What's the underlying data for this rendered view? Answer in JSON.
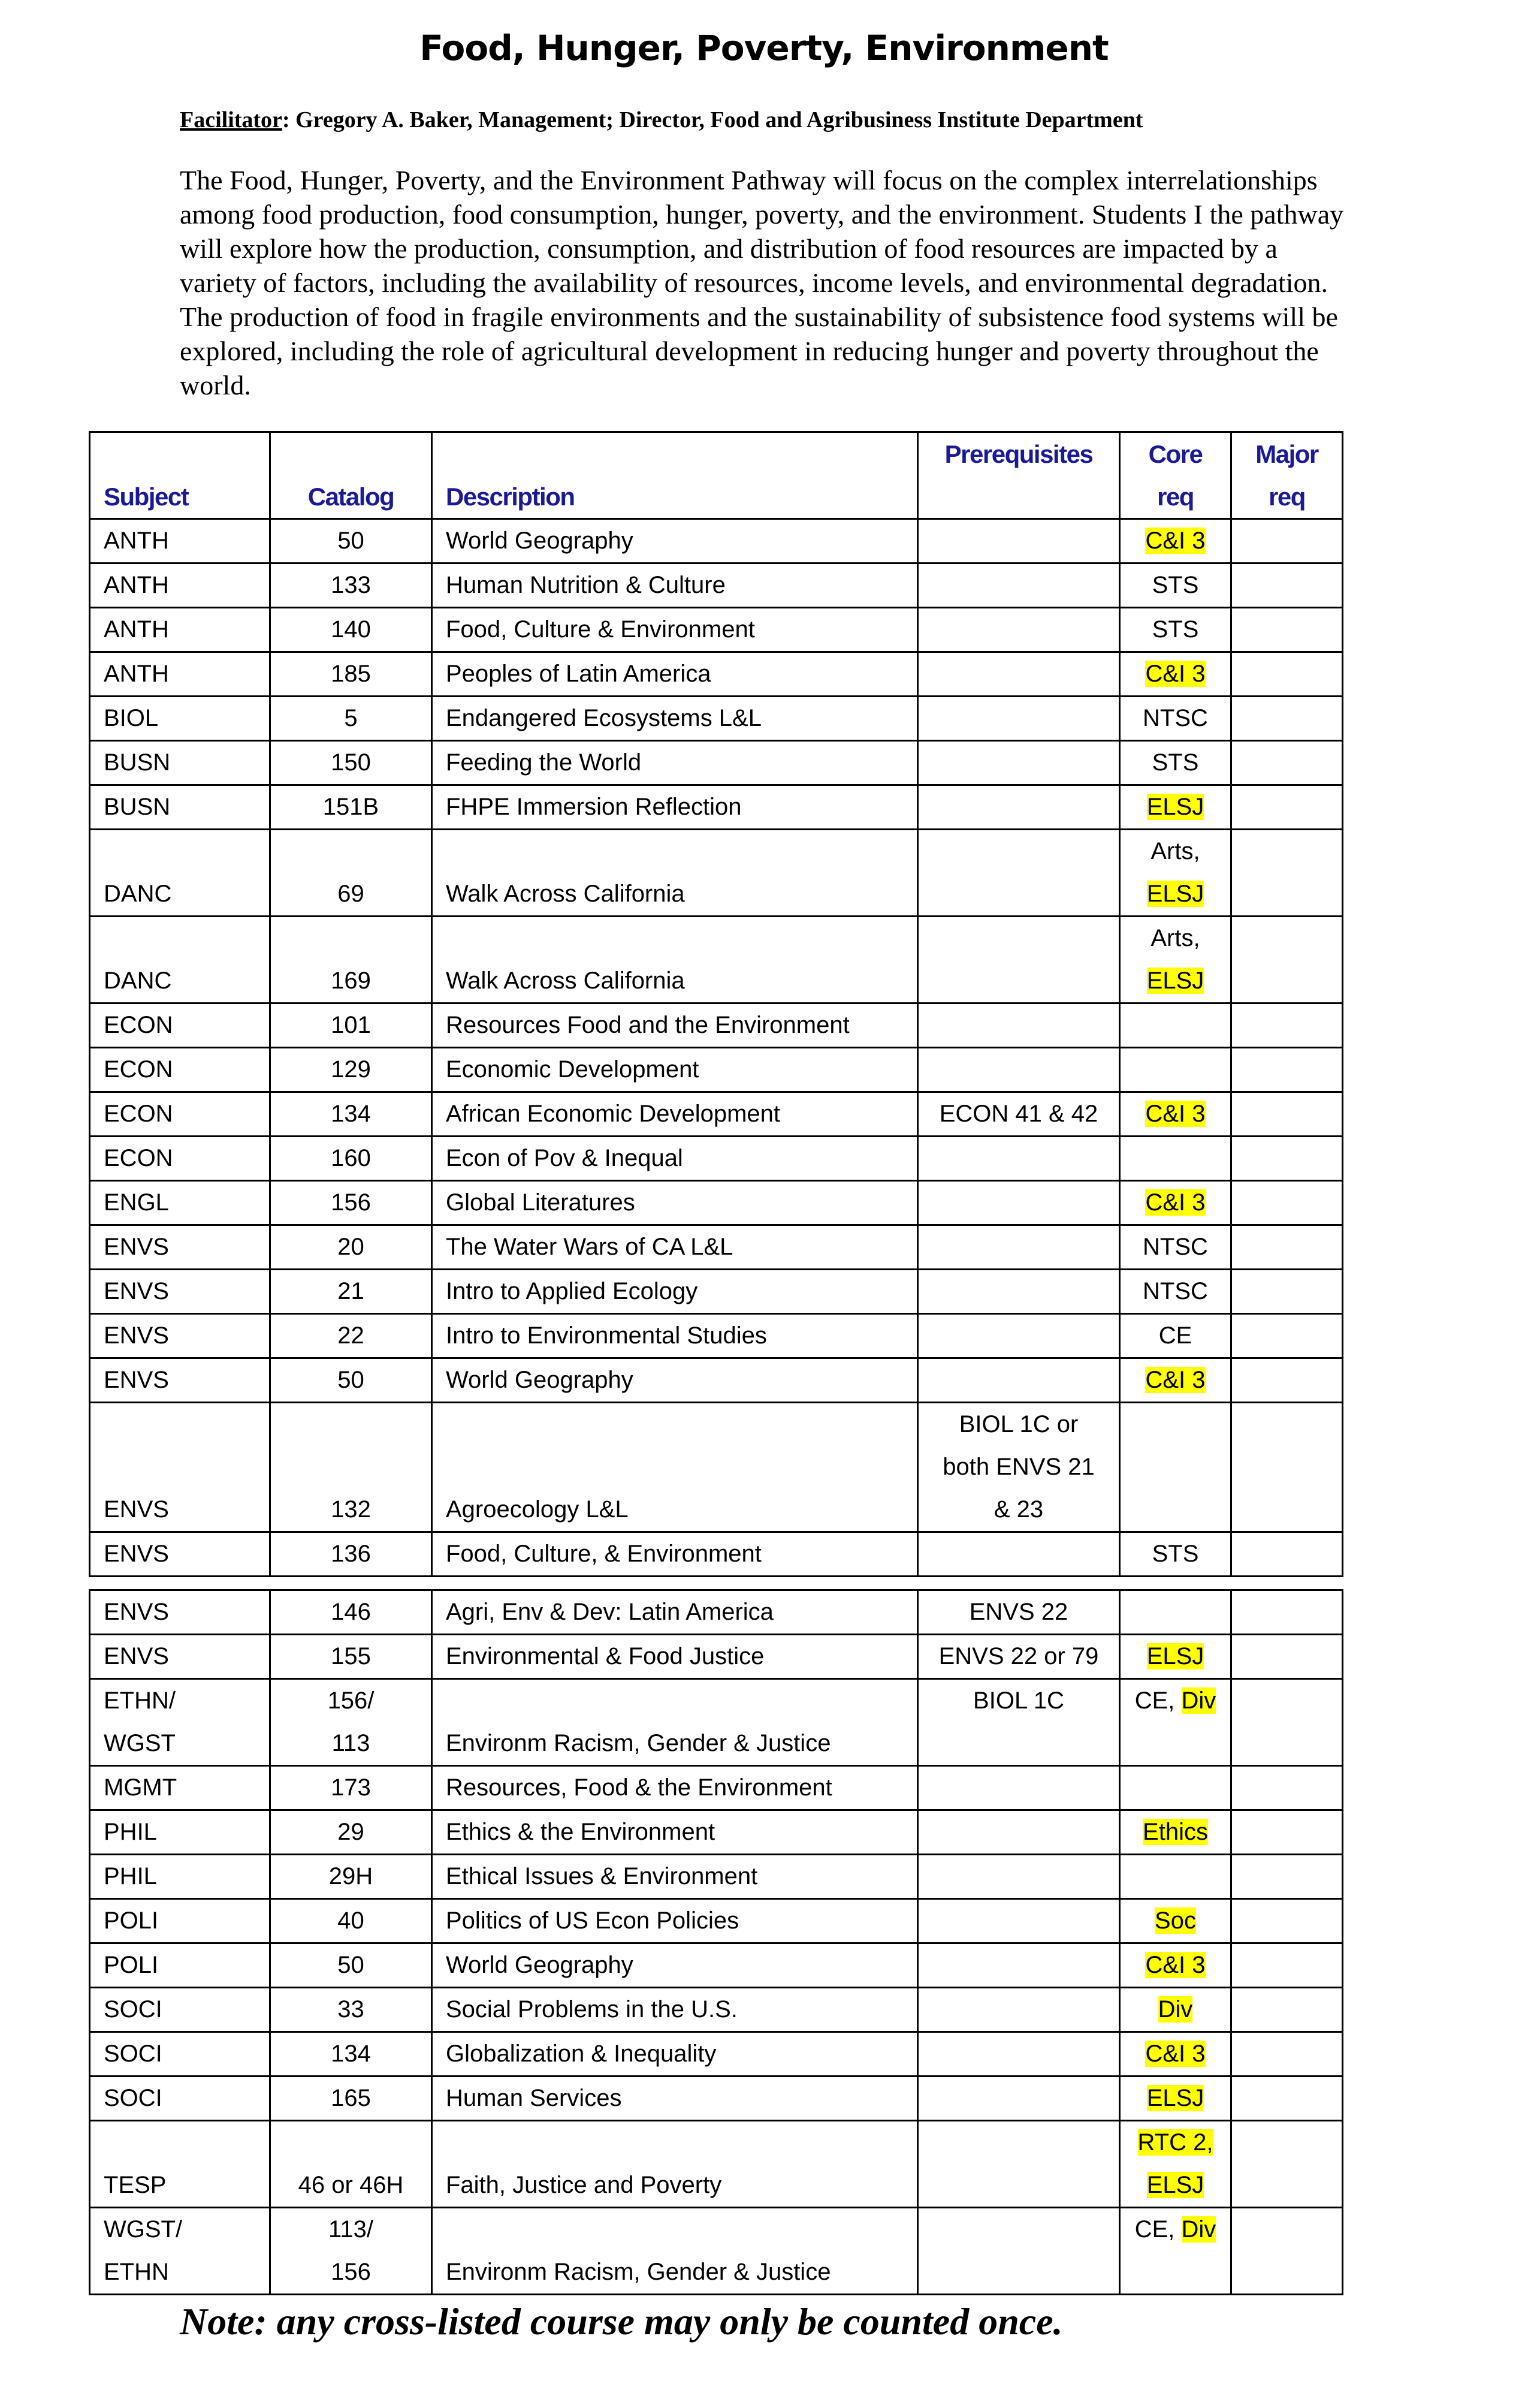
{
  "title": "Food, Hunger, Poverty, Environment",
  "facilitator": {
    "label": "Facilitator",
    "text": ": Gregory A. Baker, Management; Director, Food and Agribusiness Institute Department"
  },
  "intro": "The Food, Hunger, Poverty, and the Environment Pathway will focus on the complex interrelationships among food production, food consumption, hunger, poverty, and the environment. Students I the pathway will explore how the production, consumption, and distribution of food resources are impacted by a variety of factors, including the availability of resources, income levels, and environmental degradation. The production of food in fragile environments and the sustainability of subsistence food systems will be explored, including the role of agricultural development in reducing hunger and poverty throughout the world.",
  "colors": {
    "header_text": "#1a1a96",
    "highlight": "#ffff00"
  },
  "headers": {
    "subject": [
      "",
      "Subject"
    ],
    "catalog": [
      "",
      "Catalog"
    ],
    "description": [
      "",
      "Description"
    ],
    "prereq": [
      "Prerequisites",
      ""
    ],
    "core": [
      "Core",
      "req"
    ],
    "major": [
      "Major",
      "req"
    ]
  },
  "tables": [
    [
      {
        "subject": [
          "ANTH"
        ],
        "catalog": [
          "50"
        ],
        "description": [
          "World Geography"
        ],
        "prereq": [
          ""
        ],
        "core": [
          [
            {
              "t": "C&I 3",
              "h": 1
            }
          ]
        ]
      },
      {
        "subject": [
          "ANTH"
        ],
        "catalog": [
          "133"
        ],
        "description": [
          "Human Nutrition & Culture"
        ],
        "prereq": [
          ""
        ],
        "core": [
          [
            {
              "t": "STS",
              "h": 0
            }
          ]
        ]
      },
      {
        "subject": [
          "ANTH"
        ],
        "catalog": [
          "140"
        ],
        "description": [
          "Food, Culture & Environment"
        ],
        "prereq": [
          ""
        ],
        "core": [
          [
            {
              "t": "STS",
              "h": 0
            }
          ]
        ]
      },
      {
        "subject": [
          "ANTH"
        ],
        "catalog": [
          "185"
        ],
        "description": [
          "Peoples of Latin America"
        ],
        "prereq": [
          ""
        ],
        "core": [
          [
            {
              "t": "C&I 3",
              "h": 1
            }
          ]
        ]
      },
      {
        "subject": [
          "BIOL"
        ],
        "catalog": [
          "5"
        ],
        "description": [
          "Endangered Ecosystems L&L"
        ],
        "prereq": [
          ""
        ],
        "core": [
          [
            {
              "t": "NTSC",
              "h": 0
            }
          ]
        ]
      },
      {
        "subject": [
          "BUSN"
        ],
        "catalog": [
          "150"
        ],
        "description": [
          "Feeding the World"
        ],
        "prereq": [
          ""
        ],
        "core": [
          [
            {
              "t": "STS",
              "h": 0
            }
          ]
        ]
      },
      {
        "subject": [
          "BUSN"
        ],
        "catalog": [
          "151B"
        ],
        "description": [
          "FHPE Immersion Reflection"
        ],
        "prereq": [
          ""
        ],
        "core": [
          [
            {
              "t": "ELSJ",
              "h": 1
            }
          ]
        ]
      },
      {
        "subject": [
          "DANC"
        ],
        "catalog": [
          "69"
        ],
        "description": [
          "Walk Across California"
        ],
        "prereq": [
          ""
        ],
        "core": [
          [
            {
              "t": "Arts,",
              "h": 0
            }
          ],
          [
            {
              "t": "ELSJ",
              "h": 1
            }
          ]
        ]
      },
      {
        "subject": [
          "DANC"
        ],
        "catalog": [
          "169"
        ],
        "description": [
          "Walk Across California"
        ],
        "prereq": [
          ""
        ],
        "core": [
          [
            {
              "t": "Arts,",
              "h": 0
            }
          ],
          [
            {
              "t": "ELSJ",
              "h": 1
            }
          ]
        ]
      },
      {
        "subject": [
          "ECON"
        ],
        "catalog": [
          "101"
        ],
        "description": [
          "Resources Food and the Environment"
        ],
        "prereq": [
          ""
        ],
        "core": [
          []
        ]
      },
      {
        "subject": [
          "ECON"
        ],
        "catalog": [
          "129"
        ],
        "description": [
          "Economic Development"
        ],
        "prereq": [
          ""
        ],
        "core": [
          []
        ]
      },
      {
        "subject": [
          "ECON"
        ],
        "catalog": [
          "134"
        ],
        "description": [
          "African Economic Development"
        ],
        "prereq": [
          "ECON 41 & 42"
        ],
        "core": [
          [
            {
              "t": "C&I 3",
              "h": 1
            }
          ]
        ]
      },
      {
        "subject": [
          "ECON"
        ],
        "catalog": [
          "160"
        ],
        "description": [
          "Econ of Pov & Inequal"
        ],
        "prereq": [
          ""
        ],
        "core": [
          []
        ]
      },
      {
        "subject": [
          "ENGL"
        ],
        "catalog": [
          "156"
        ],
        "description": [
          "Global Literatures"
        ],
        "prereq": [
          ""
        ],
        "core": [
          [
            {
              "t": "C&I 3",
              "h": 1
            }
          ]
        ]
      },
      {
        "subject": [
          "ENVS"
        ],
        "catalog": [
          "20"
        ],
        "description": [
          "The Water Wars of CA L&L"
        ],
        "prereq": [
          ""
        ],
        "core": [
          [
            {
              "t": "NTSC",
              "h": 0
            }
          ]
        ]
      },
      {
        "subject": [
          "ENVS"
        ],
        "catalog": [
          "21"
        ],
        "description": [
          "Intro to Applied Ecology"
        ],
        "prereq": [
          ""
        ],
        "core": [
          [
            {
              "t": "NTSC",
              "h": 0
            }
          ]
        ]
      },
      {
        "subject": [
          "ENVS"
        ],
        "catalog": [
          "22"
        ],
        "description": [
          "Intro to Environmental Studies"
        ],
        "prereq": [
          ""
        ],
        "core": [
          [
            {
              "t": "CE",
              "h": 0
            }
          ]
        ]
      },
      {
        "subject": [
          "ENVS"
        ],
        "catalog": [
          "50"
        ],
        "description": [
          "World Geography"
        ],
        "prereq": [
          ""
        ],
        "core": [
          [
            {
              "t": "C&I 3",
              "h": 1
            }
          ]
        ]
      },
      {
        "subject": [
          "ENVS"
        ],
        "catalog": [
          "132"
        ],
        "description": [
          "Agroecology L&L"
        ],
        "prereq": [
          "BIOL 1C or",
          "both ENVS 21",
          "& 23"
        ],
        "core": [
          []
        ]
      },
      {
        "subject": [
          "ENVS"
        ],
        "catalog": [
          "136"
        ],
        "description": [
          "Food, Culture, & Environment"
        ],
        "prereq": [
          ""
        ],
        "core": [
          [
            {
              "t": "STS",
              "h": 0
            }
          ]
        ]
      }
    ],
    [
      {
        "subject": [
          "ENVS"
        ],
        "catalog": [
          "146"
        ],
        "description": [
          "Agri, Env & Dev: Latin America"
        ],
        "prereq": [
          "ENVS 22"
        ],
        "core": [
          []
        ]
      },
      {
        "subject": [
          "ENVS"
        ],
        "catalog": [
          "155"
        ],
        "description": [
          "Environmental & Food Justice"
        ],
        "prereq": [
          "ENVS 22 or 79"
        ],
        "core": [
          [
            {
              "t": "ELSJ",
              "h": 1
            }
          ]
        ]
      },
      {
        "subject": [
          "ETHN/",
          "WGST"
        ],
        "catalog": [
          "156/",
          "113"
        ],
        "description": [
          "",
          "Environm Racism, Gender & Justice"
        ],
        "prereq": [
          "BIOL 1C",
          ""
        ],
        "core": [
          [
            {
              "t": "CE, ",
              "h": 0
            },
            {
              "t": "Div",
              "h": 1
            }
          ],
          []
        ]
      },
      {
        "subject": [
          "MGMT"
        ],
        "catalog": [
          "173"
        ],
        "description": [
          "Resources, Food & the Environment"
        ],
        "prereq": [
          ""
        ],
        "core": [
          []
        ]
      },
      {
        "subject": [
          "PHIL"
        ],
        "catalog": [
          "29"
        ],
        "description": [
          "Ethics & the Environment"
        ],
        "prereq": [
          ""
        ],
        "core": [
          [
            {
              "t": "Ethics",
              "h": 1
            }
          ]
        ]
      },
      {
        "subject": [
          "PHIL"
        ],
        "catalog": [
          "29H"
        ],
        "description": [
          "Ethical Issues & Environment"
        ],
        "prereq": [
          ""
        ],
        "core": [
          []
        ]
      },
      {
        "subject": [
          "POLI"
        ],
        "catalog": [
          "40"
        ],
        "description": [
          "Politics of US Econ Policies"
        ],
        "prereq": [
          ""
        ],
        "core": [
          [
            {
              "t": "Soc",
              "h": 1
            }
          ]
        ]
      },
      {
        "subject": [
          "POLI"
        ],
        "catalog": [
          "50"
        ],
        "description": [
          "World Geography"
        ],
        "prereq": [
          ""
        ],
        "core": [
          [
            {
              "t": "C&I 3",
              "h": 1
            }
          ]
        ]
      },
      {
        "subject": [
          "SOCI"
        ],
        "catalog": [
          "33"
        ],
        "description": [
          "Social Problems in the U.S."
        ],
        "prereq": [
          ""
        ],
        "core": [
          [
            {
              "t": "Div",
              "h": 1
            }
          ]
        ]
      },
      {
        "subject": [
          "SOCI"
        ],
        "catalog": [
          "134"
        ],
        "description": [
          "Globalization & Inequality"
        ],
        "prereq": [
          ""
        ],
        "core": [
          [
            {
              "t": "C&I 3",
              "h": 1
            }
          ]
        ]
      },
      {
        "subject": [
          "SOCI"
        ],
        "catalog": [
          "165"
        ],
        "description": [
          "Human Services"
        ],
        "prereq": [
          ""
        ],
        "core": [
          [
            {
              "t": "ELSJ",
              "h": 1
            }
          ]
        ]
      },
      {
        "subject": [
          "TESP"
        ],
        "catalog": [
          "46 or 46H"
        ],
        "description": [
          "Faith, Justice and Poverty"
        ],
        "prereq": [
          ""
        ],
        "core": [
          [
            {
              "t": "RTC 2,",
              "h": 1
            }
          ],
          [
            {
              "t": "ELSJ",
              "h": 1
            }
          ]
        ]
      },
      {
        "subject": [
          "WGST/",
          "ETHN"
        ],
        "catalog": [
          "113/",
          "156"
        ],
        "description": [
          "",
          "Environm Racism, Gender & Justice"
        ],
        "prereq": [
          "",
          ""
        ],
        "core": [
          [
            {
              "t": "CE, ",
              "h": 0
            },
            {
              "t": "Div",
              "h": 1
            }
          ],
          []
        ]
      }
    ]
  ],
  "note": "Note: any cross-listed course may only be counted once."
}
